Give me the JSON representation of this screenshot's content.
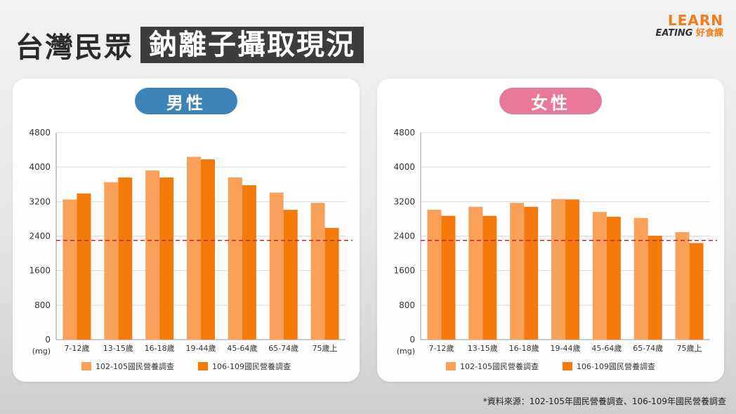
{
  "header": {
    "title_plain": "台灣民眾",
    "title_highlight": "鈉離子攝取現況"
  },
  "logo": {
    "top": "LEARN",
    "bottom_en": "EATING",
    "bottom_zh": "好食課"
  },
  "colors": {
    "series_102": "#f9a05a",
    "series_106": "#f57a0c",
    "reference_line": "#c0272d",
    "male_pill": "#3b84b5",
    "female_pill": "#e8799a"
  },
  "panels": [
    {
      "pill": "男性"
    },
    {
      "pill": "女性"
    }
  ],
  "legend": {
    "series_102": "102-105國民營養調查",
    "series_106": "106-109國民營養調查"
  },
  "source": "*資料來源：102-105年國民營養調查、106-109年國民營養調查",
  "chart_data": [
    {
      "type": "bar",
      "ylabel": "(mg)",
      "ylim": [
        0,
        4800
      ],
      "yticks": [
        0,
        800,
        1600,
        2400,
        3200,
        4000,
        4800
      ],
      "grid": true,
      "reference_line": 2300,
      "legend_position": "bottom",
      "categories": [
        "7-12歲",
        "13-15歲",
        "16-18歲",
        "19-44歲",
        "45-64歲",
        "65-74歲",
        "75歲上"
      ],
      "series": [
        {
          "name": "102-105國民營養調查",
          "values": [
            3250,
            3650,
            3920,
            4240,
            3760,
            3410,
            3170
          ]
        },
        {
          "name": "106-109國民營養調查",
          "values": [
            3390,
            3760,
            3760,
            4180,
            3580,
            3010,
            2590
          ]
        }
      ]
    },
    {
      "type": "bar",
      "ylabel": "(mg)",
      "ylim": [
        0,
        4800
      ],
      "yticks": [
        0,
        800,
        1600,
        2400,
        3200,
        4000,
        4800
      ],
      "grid": true,
      "reference_line": 2300,
      "legend_position": "bottom",
      "categories": [
        "7-12歲",
        "13-15歲",
        "16-18歲",
        "19-44歲",
        "45-64歲",
        "65-74歲",
        "75歲上"
      ],
      "series": [
        {
          "name": "102-105國民營養調查",
          "values": [
            3010,
            3080,
            3170,
            3260,
            2960,
            2820,
            2490
          ]
        },
        {
          "name": "106-109國民營養調查",
          "values": [
            2870,
            2870,
            3080,
            3250,
            2850,
            2410,
            2240
          ]
        }
      ]
    }
  ]
}
